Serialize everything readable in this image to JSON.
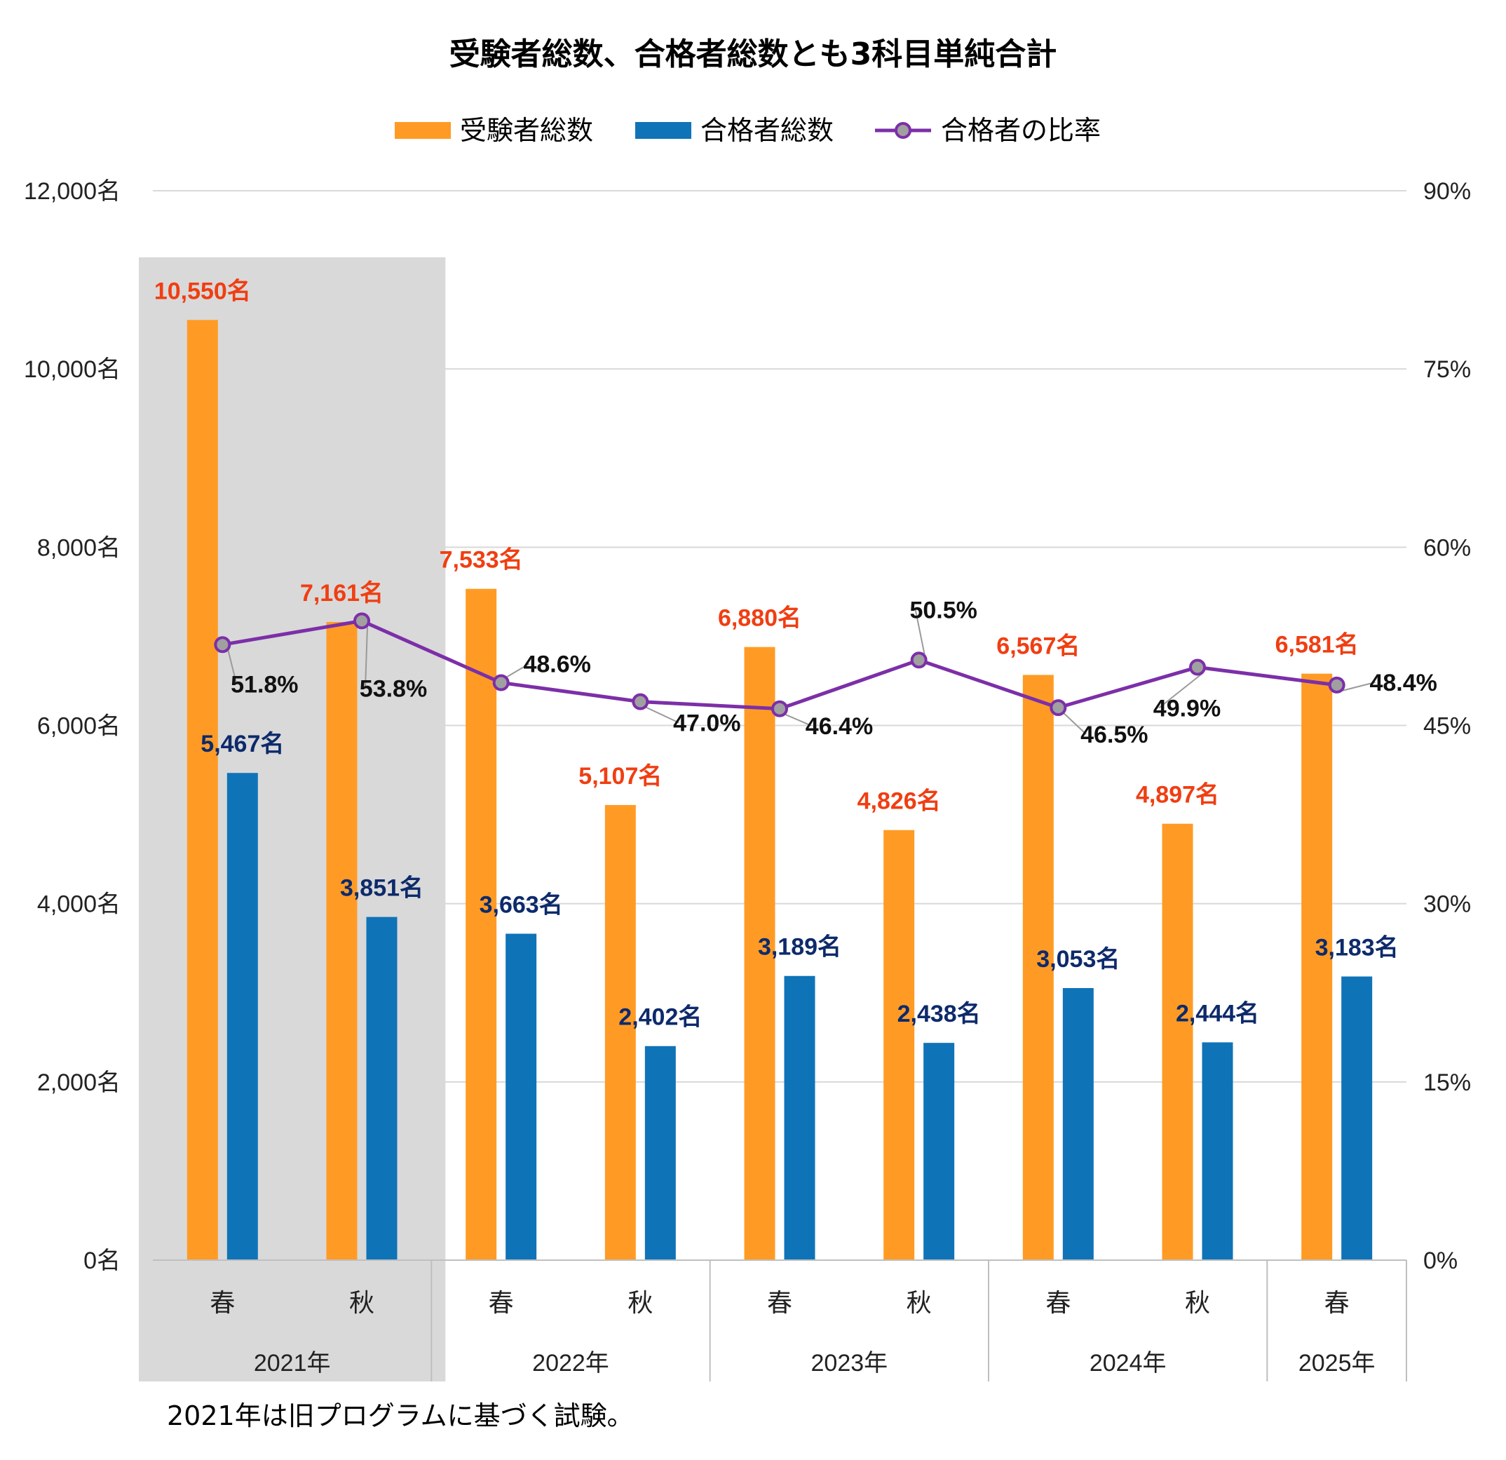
{
  "chart_data": {
    "type": "bar",
    "title": "受験者総数、合格者総数とも3科目単純合計",
    "categories": [
      "春",
      "秋",
      "春",
      "秋",
      "春",
      "秋",
      "春",
      "秋",
      "春"
    ],
    "year_groups": [
      {
        "label": "2021年",
        "count": 2
      },
      {
        "label": "2022年",
        "count": 2
      },
      {
        "label": "2023年",
        "count": 2
      },
      {
        "label": "2024年",
        "count": 2
      },
      {
        "label": "2025年",
        "count": 1
      }
    ],
    "series": [
      {
        "name": "受験者総数",
        "kind": "bar",
        "axis": "left",
        "color": "#ff9b25",
        "values": [
          10550,
          7161,
          7533,
          5107,
          6880,
          4826,
          6567,
          4897,
          6581
        ],
        "labels": [
          "10,550名",
          "7,161名",
          "7,533名",
          "5,107名",
          "6,880名",
          "4,826名",
          "6,567名",
          "4,897名",
          "6,581名"
        ]
      },
      {
        "name": "合格者総数",
        "kind": "bar",
        "axis": "left",
        "color": "#0f73b8",
        "values": [
          5467,
          3851,
          3663,
          2402,
          3189,
          2438,
          3053,
          2444,
          3183
        ],
        "labels": [
          "5,467名",
          "3,851名",
          "3,663名",
          "2,402名",
          "3,189名",
          "2,438名",
          "3,053名",
          "2,444名",
          "3,183名"
        ]
      },
      {
        "name": "合格者の比率",
        "kind": "line",
        "axis": "right",
        "color": "#7c2fa8",
        "values": [
          51.8,
          53.8,
          48.6,
          47.0,
          46.4,
          50.5,
          46.5,
          49.9,
          48.4
        ],
        "labels": [
          "51.8%",
          "53.8%",
          "48.6%",
          "47.0%",
          "46.4%",
          "50.5%",
          "46.5%",
          "49.9%",
          "48.4%"
        ]
      }
    ],
    "ylim": [
      0,
      12000
    ],
    "y2lim": [
      0,
      90
    ],
    "left_ticks": [
      "0名",
      "2,000名",
      "4,000名",
      "6,000名",
      "8,000名",
      "10,000名",
      "12,000名"
    ],
    "right_ticks": [
      "0%",
      "15%",
      "30%",
      "45%",
      "60%",
      "75%",
      "90%"
    ],
    "highlight_note": "2021年は旧プログラムに基づく試験。",
    "grid": true,
    "legend_position": "top-center",
    "colors": {
      "total": "#ff9b25",
      "pass": "#0f73b8",
      "rate": "#7c2fa8",
      "highlight": "#d9d9d9"
    }
  }
}
